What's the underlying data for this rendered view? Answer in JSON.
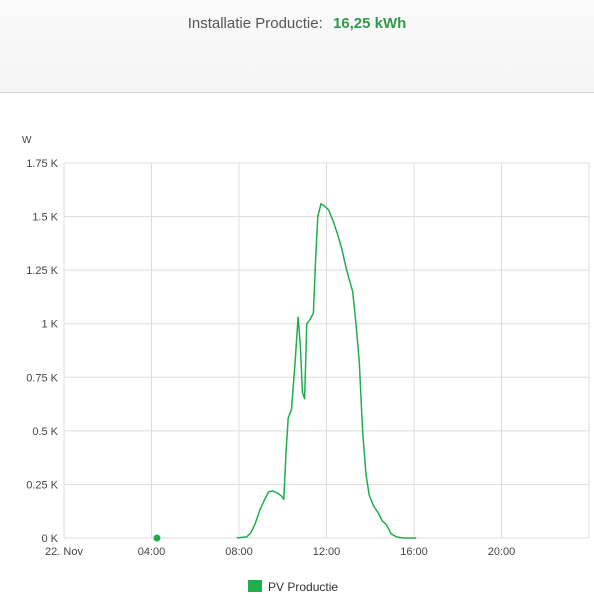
{
  "header": {
    "label": "Installatie Productie:",
    "value": "16,25 kWh"
  },
  "chart_data": {
    "type": "line",
    "ylabel": "W",
    "ylim": [
      0,
      1750
    ],
    "y_ticks": [
      {
        "value": 0,
        "label": "0 K"
      },
      {
        "value": 250,
        "label": "0.25 K"
      },
      {
        "value": 500,
        "label": "0.5 K"
      },
      {
        "value": 750,
        "label": "0.75 K"
      },
      {
        "value": 1000,
        "label": "1 K"
      },
      {
        "value": 1250,
        "label": "1.25 K"
      },
      {
        "value": 1500,
        "label": "1.5 K"
      },
      {
        "value": 1750,
        "label": "1.75 K"
      }
    ],
    "x_ticks": [
      {
        "hour": 0,
        "label": "22. Nov"
      },
      {
        "hour": 4,
        "label": "04:00"
      },
      {
        "hour": 8,
        "label": "08:00"
      },
      {
        "hour": 12,
        "label": "12:00"
      },
      {
        "hour": 16,
        "label": "16:00"
      },
      {
        "hour": 20,
        "label": "20:00"
      }
    ],
    "xlim_hours": [
      0,
      24
    ],
    "grid": true,
    "legend_position": "bottom-center",
    "series": [
      {
        "name": "PV Productie",
        "color": "#1fae4b",
        "marker_point": {
          "x": 4.25,
          "y": 0
        },
        "points": [
          [
            7.9,
            0
          ],
          [
            8.35,
            5
          ],
          [
            8.55,
            25
          ],
          [
            8.75,
            70
          ],
          [
            8.95,
            130
          ],
          [
            9.15,
            175
          ],
          [
            9.35,
            215
          ],
          [
            9.55,
            220
          ],
          [
            9.75,
            210
          ],
          [
            9.95,
            195
          ],
          [
            10.05,
            180
          ],
          [
            10.15,
            400
          ],
          [
            10.25,
            560
          ],
          [
            10.4,
            600
          ],
          [
            10.55,
            800
          ],
          [
            10.7,
            1030
          ],
          [
            10.8,
            900
          ],
          [
            10.9,
            680
          ],
          [
            11.0,
            650
          ],
          [
            11.1,
            1000
          ],
          [
            11.25,
            1020
          ],
          [
            11.4,
            1050
          ],
          [
            11.5,
            1300
          ],
          [
            11.6,
            1500
          ],
          [
            11.75,
            1560
          ],
          [
            11.9,
            1550
          ],
          [
            12.1,
            1530
          ],
          [
            12.3,
            1480
          ],
          [
            12.5,
            1420
          ],
          [
            12.7,
            1350
          ],
          [
            12.85,
            1280
          ],
          [
            13.0,
            1220
          ],
          [
            13.2,
            1150
          ],
          [
            13.35,
            1000
          ],
          [
            13.5,
            820
          ],
          [
            13.65,
            500
          ],
          [
            13.8,
            300
          ],
          [
            13.95,
            200
          ],
          [
            14.15,
            150
          ],
          [
            14.35,
            120
          ],
          [
            14.55,
            80
          ],
          [
            14.75,
            60
          ],
          [
            14.95,
            20
          ],
          [
            15.2,
            5
          ],
          [
            15.5,
            0
          ],
          [
            16.1,
            0
          ]
        ]
      }
    ]
  }
}
